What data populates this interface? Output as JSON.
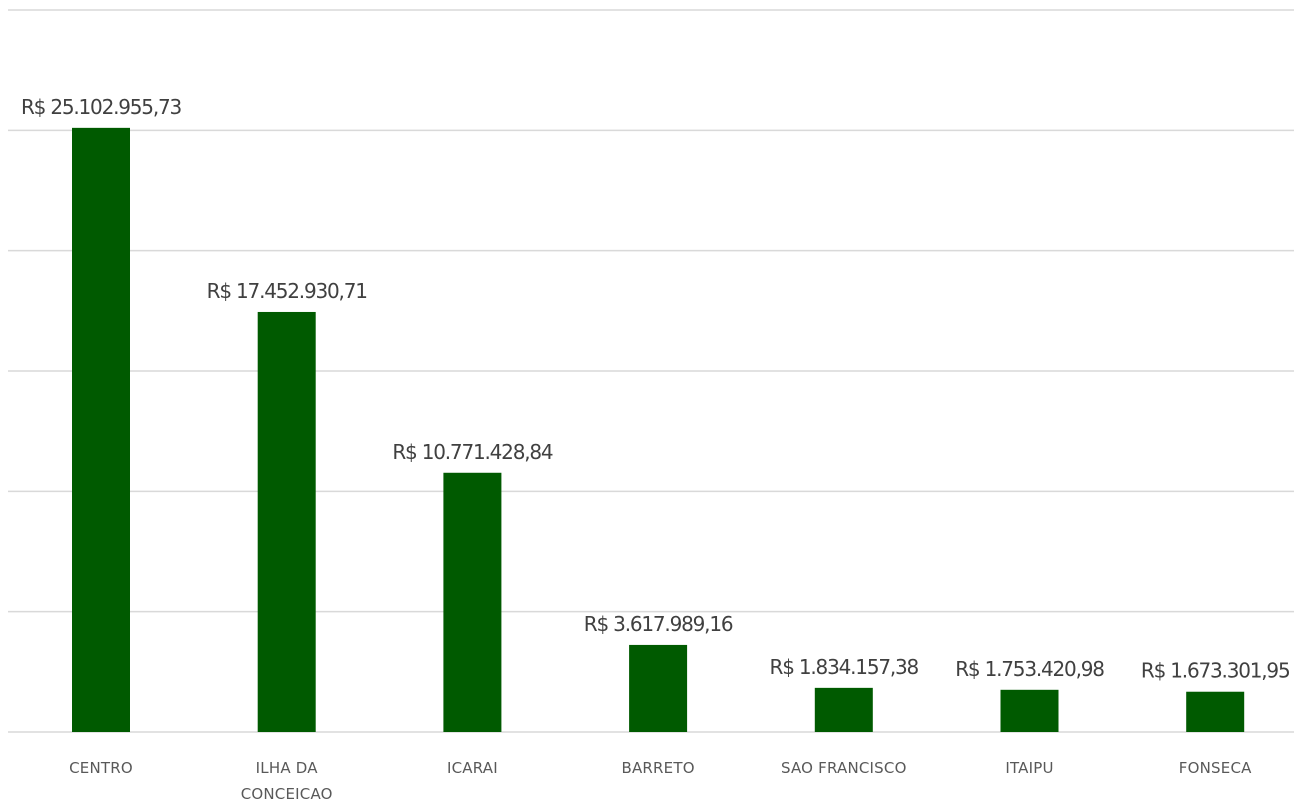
{
  "chart_data": {
    "type": "bar",
    "categories": [
      "CENTRO",
      "ILHA DA CONCEICAO",
      "ICARAI",
      "BARRETO",
      "SAO FRANCISCO",
      "ITAIPU",
      "FONSECA"
    ],
    "values": [
      25102955.73,
      17452930.71,
      10771428.84,
      3617989.16,
      1834157.38,
      1753420.98,
      1673301.95
    ],
    "data_labels": [
      "R$ 25.102.955,73",
      "R$ 17.452.930,71",
      "R$ 10.771.428,84",
      "R$ 3.617.989,16",
      "R$ 1.834.157,38",
      "R$ 1.753.420,98",
      "R$ 1.673.301,95"
    ],
    "ylim": [
      0,
      30000000
    ],
    "grid": true,
    "bar_color": "#005a00"
  }
}
